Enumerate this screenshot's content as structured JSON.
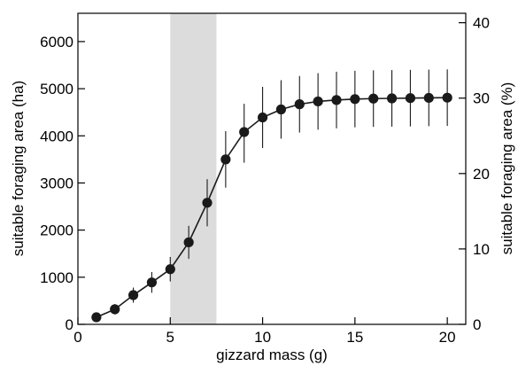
{
  "chart_data": {
    "type": "line",
    "title": "",
    "xlabel": "gizzard mass (g)",
    "ylabel": "suitable foraging area (ha)",
    "y2label": "suitable foraging area (%)",
    "xlim": [
      0,
      21
    ],
    "ylim": [
      0,
      6600
    ],
    "y2lim": [
      0,
      41.25
    ],
    "x_ticks": [
      0,
      5,
      10,
      15,
      20
    ],
    "y_ticks": [
      0,
      1000,
      2000,
      3000,
      4000,
      5000,
      6000
    ],
    "y2_ticks": [
      0,
      10,
      20,
      30,
      40
    ],
    "grid": false,
    "legend": "none",
    "highlight_band": {
      "x_start": 5,
      "x_end": 7.5,
      "color": "#dcdcdc"
    },
    "series": [
      {
        "color": "#1a1a1a",
        "x": [
          1,
          2,
          3,
          4,
          5,
          6,
          7,
          8,
          9,
          10,
          11,
          12,
          13,
          14,
          15,
          16,
          17,
          18,
          19,
          20
        ],
        "y": [
          150,
          320,
          620,
          890,
          1170,
          1740,
          2580,
          3500,
          4080,
          4390,
          4560,
          4670,
          4730,
          4760,
          4780,
          4790,
          4795,
          4800,
          4805,
          4810
        ],
        "error_low": [
          60,
          110,
          160,
          220,
          260,
          350,
          500,
          600,
          650,
          650,
          620,
          600,
          600,
          600,
          600,
          600,
          600,
          600,
          600,
          600
        ],
        "error_high": [
          60,
          110,
          160,
          220,
          260,
          350,
          500,
          600,
          600,
          650,
          620,
          600,
          600,
          600,
          600,
          600,
          600,
          600,
          600,
          600
        ]
      }
    ]
  }
}
